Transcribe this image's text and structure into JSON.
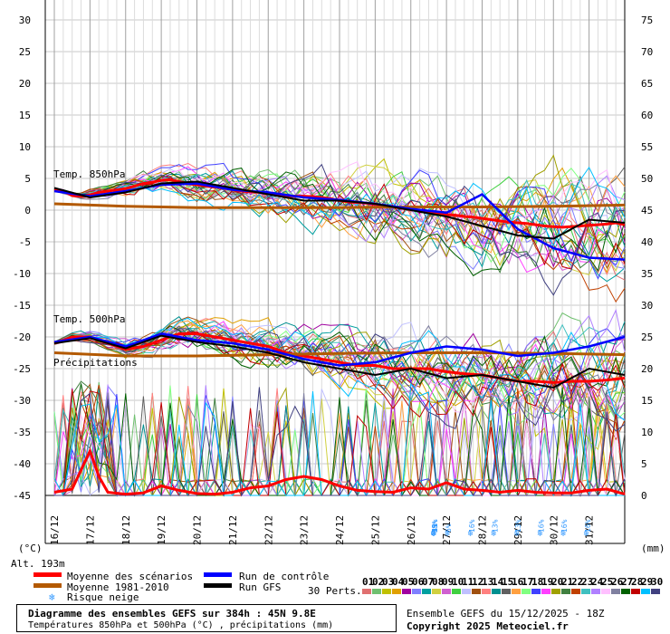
{
  "chart_data": {
    "type": "line",
    "title": "Diagramme des ensembles GEFS sur 384h : 45N 9.8E",
    "subtitle": "Températures 850hPa et 500hPa (°C) , précipitations (mm)",
    "run_info": "Ensemble GEFS du 15/12/2025 - 18Z",
    "copyright": "Copyright 2025 Meteociel.fr",
    "altitude": "Alt. 193m",
    "left_unit": "(°C)",
    "right_unit": "(mm)",
    "left_ticks": [
      "30",
      "25",
      "20",
      "15",
      "10",
      "5",
      "0",
      "-5",
      "-10",
      "-15",
      "-20",
      "-25",
      "-30",
      "-35",
      "-40",
      "-45"
    ],
    "right_ticks": [
      "75",
      "70",
      "65",
      "60",
      "55",
      "50",
      "45",
      "40",
      "35",
      "30",
      "25",
      "20",
      "15",
      "10",
      "5",
      "0"
    ],
    "ylim": [
      -45,
      30
    ],
    "y2lim": [
      0,
      75
    ],
    "x_dates": [
      "16/12",
      "17/12",
      "18/12",
      "19/12",
      "20/12",
      "21/12",
      "22/12",
      "23/12",
      "24/12",
      "25/12",
      "26/12",
      "27/12",
      "28/12",
      "29/12",
      "30/12",
      "31/12"
    ],
    "panel_labels": {
      "t850": "Temp. 850hPa",
      "t500": "Temp. 500hPa",
      "precip": "Précipitations"
    },
    "legend": {
      "mean": "Moyenne des scénarios",
      "clim": "Moyenne 1981-2010",
      "snow": "Risque neige",
      "control": "Run de contrôle",
      "gfs": "Run GFS",
      "perts_label": "30 Perts.",
      "perts": [
        "01",
        "02",
        "03",
        "04",
        "05",
        "06",
        "07",
        "08",
        "09",
        "10",
        "11",
        "12",
        "13",
        "14",
        "15",
        "16",
        "17",
        "18",
        "19",
        "20",
        "21",
        "22",
        "23",
        "24",
        "25",
        "26",
        "27",
        "28",
        "29",
        "30"
      ]
    },
    "colors": {
      "mean": "#ff0000",
      "clim": "#b35900",
      "control": "#0000ff",
      "gfs": "#000000",
      "perts": [
        "#e07070",
        "#70c070",
        "#c0c000",
        "#e0a000",
        "#a000a0",
        "#8080ff",
        "#00a0a0",
        "#d0d040",
        "#d060d0",
        "#40d040",
        "#c0c0ff",
        "#a05010",
        "#ff8080",
        "#009090",
        "#606060",
        "#ffa040",
        "#80ff80",
        "#4040ff",
        "#ff40ff",
        "#a0a000",
        "#408040",
        "#c04000",
        "#40c0c0",
        "#b080ff",
        "#ffc0ff",
        "#8080a0",
        "#006000",
        "#c00000",
        "#00c0ff",
        "#404080"
      ]
    },
    "series": [
      {
        "name": "Moyenne des scénarios",
        "panel": "t850",
        "x": [
          0,
          1,
          2,
          3,
          4,
          5,
          6,
          7,
          8,
          9,
          10,
          11,
          12,
          13,
          14,
          15,
          16,
          17,
          18,
          19,
          20,
          21,
          22,
          23,
          24,
          25,
          26,
          27,
          28,
          29,
          30,
          31,
          32,
          33,
          34,
          35,
          36,
          37,
          38,
          39,
          40,
          41,
          42,
          43,
          44,
          45,
          46,
          47,
          48,
          49,
          50,
          51,
          52,
          53,
          54,
          55,
          56,
          57,
          58,
          59,
          60,
          61,
          62,
          63,
          64
        ],
        "values": [
          3.2,
          3.0,
          2.3,
          2.2,
          2.4,
          2.8,
          3.0,
          3.2,
          3.4,
          3.8,
          4.2,
          4.4,
          4.7,
          4.8,
          4.5,
          4.2,
          4.0,
          3.8,
          3.6,
          3.5,
          3.2,
          3.0,
          2.9,
          2.8,
          2.7,
          2.5,
          2.3,
          2.2,
          2.2,
          2.1,
          2.0,
          1.8,
          1.5,
          1.3,
          1.2,
          1.1,
          0.9,
          0.7,
          0.5,
          0.3,
          0.1,
          -0.1,
          -0.3,
          -0.5,
          -0.7,
          -0.8,
          -1.0,
          -1.1,
          -1.3,
          -1.5,
          -1.7,
          -1.9,
          -2.0,
          -2.1,
          -2.3,
          -2.5,
          -2.6,
          -2.7,
          -2.6,
          -2.5,
          -2.4,
          -2.3,
          -2.2,
          -2.0,
          -2.3
        ]
      },
      {
        "name": "Moyenne 1981-2010",
        "panel": "t850",
        "x": [
          0,
          8,
          16,
          24,
          32,
          40,
          48,
          56,
          64
        ],
        "values": [
          1.0,
          0.6,
          0.4,
          0.4,
          0.4,
          0.5,
          0.5,
          0.6,
          0.8
        ]
      },
      {
        "name": "Run de contrôle",
        "panel": "t850",
        "x": [
          0,
          4,
          8,
          12,
          16,
          20,
          24,
          28,
          32,
          36,
          40,
          44,
          48,
          52,
          56,
          60,
          64
        ],
        "values": [
          3.0,
          2.2,
          3.0,
          4.0,
          4.2,
          3.2,
          2.8,
          2.0,
          1.6,
          1.0,
          0.2,
          -0.4,
          2.5,
          -3.0,
          -6.0,
          -7.5,
          -7.8
        ]
      },
      {
        "name": "Run GFS",
        "panel": "t850",
        "x": [
          0,
          4,
          8,
          12,
          16,
          20,
          24,
          28,
          32,
          36,
          40,
          44,
          48,
          52,
          56,
          60,
          64
        ],
        "values": [
          3.5,
          2.0,
          2.8,
          4.2,
          4.5,
          3.5,
          2.5,
          1.5,
          1.5,
          1.0,
          0.0,
          -1.0,
          -2.5,
          -4.0,
          -4.5,
          -1.5,
          -2.0
        ]
      },
      {
        "name": "Moyenne des scénarios",
        "panel": "t500",
        "x": [
          0,
          2,
          4,
          6,
          8,
          10,
          12,
          14,
          16,
          18,
          20,
          22,
          24,
          26,
          28,
          30,
          32,
          34,
          36,
          38,
          40,
          42,
          44,
          46,
          48,
          50,
          52,
          54,
          56,
          58,
          60,
          62,
          64
        ],
        "values": [
          -21.0,
          -20.0,
          -20.0,
          -21.0,
          -22.0,
          -21.5,
          -20.5,
          -19.5,
          -19.5,
          -20.0,
          -20.5,
          -21.0,
          -21.5,
          -22.5,
          -23.0,
          -23.5,
          -24.0,
          -24.5,
          -24.5,
          -25.0,
          -25.0,
          -25.0,
          -25.5,
          -25.8,
          -26.0,
          -26.5,
          -27.0,
          -27.0,
          -27.2,
          -27.0,
          -27.0,
          -26.8,
          -26.5
        ]
      },
      {
        "name": "Moyenne 1981-2010",
        "panel": "t500",
        "x": [
          0,
          8,
          16,
          24,
          32,
          40,
          48,
          56,
          64
        ],
        "values": [
          -22.5,
          -23.0,
          -23.0,
          -22.8,
          -22.6,
          -22.5,
          -22.5,
          -22.6,
          -22.8
        ]
      },
      {
        "name": "Run de contrôle",
        "panel": "t500",
        "x": [
          0,
          4,
          8,
          12,
          16,
          20,
          24,
          28,
          32,
          36,
          40,
          44,
          48,
          52,
          56,
          60,
          64
        ],
        "values": [
          -20.8,
          -20.0,
          -21.5,
          -19.5,
          -20.5,
          -21.0,
          -22.0,
          -23.5,
          -24.5,
          -24.0,
          -22.5,
          -21.5,
          -22.0,
          -23.0,
          -22.5,
          -21.5,
          -20.0
        ]
      },
      {
        "name": "Run GFS",
        "panel": "t500",
        "x": [
          0,
          4,
          8,
          12,
          16,
          20,
          24,
          28,
          32,
          36,
          40,
          44,
          48,
          52,
          56,
          60,
          64
        ],
        "values": [
          -21.0,
          -20.2,
          -21.8,
          -19.8,
          -20.8,
          -21.5,
          -22.5,
          -24.0,
          -25.0,
          -26.0,
          -25.0,
          -26.5,
          -26.0,
          -27.0,
          -28.0,
          -25.0,
          -26.0
        ]
      },
      {
        "name": "Moyenne des scénarios",
        "panel": "precip",
        "x": [
          0,
          2,
          3,
          4,
          5,
          6,
          8,
          10,
          12,
          14,
          16,
          18,
          20,
          22,
          24,
          26,
          28,
          30,
          32,
          34,
          36,
          38,
          40,
          42,
          44,
          46,
          48,
          50,
          52,
          54,
          56,
          58,
          60,
          62,
          64
        ],
        "values": [
          0.5,
          1.0,
          4.0,
          7.0,
          3.0,
          0.5,
          0.2,
          0.4,
          1.5,
          0.8,
          0.3,
          0.2,
          0.5,
          1.2,
          1.5,
          2.5,
          3.0,
          2.5,
          1.5,
          0.8,
          0.6,
          0.5,
          1.2,
          1.0,
          2.0,
          1.0,
          0.8,
          0.5,
          0.8,
          0.5,
          0.4,
          0.4,
          0.8,
          1.0,
          0.2
        ]
      }
    ],
    "snow_risk": [
      {
        "x": 16.5,
        "label": "3%"
      },
      {
        "x": 17.0,
        "label": "3%"
      },
      {
        "x": 18.6,
        "label": "3%"
      },
      {
        "x": 20.0,
        "label": "3%"
      },
      {
        "x": 20.4,
        "label": "3%"
      },
      {
        "x": 20.8,
        "label": "6%"
      },
      {
        "x": 21.2,
        "label": "3%"
      },
      {
        "x": 21.6,
        "label": "13%"
      },
      {
        "x": 22.0,
        "label": "13%"
      },
      {
        "x": 22.4,
        "label": "13%"
      },
      {
        "x": 22.8,
        "label": "6%"
      },
      {
        "x": 23.2,
        "label": "16%"
      },
      {
        "x": 23.6,
        "label": "13%"
      },
      {
        "x": 24.0,
        "label": "13%"
      },
      {
        "x": 24.4,
        "label": "16%"
      },
      {
        "x": 24.8,
        "label": "16%"
      },
      {
        "x": 25.2,
        "label": "16%"
      }
    ]
  }
}
